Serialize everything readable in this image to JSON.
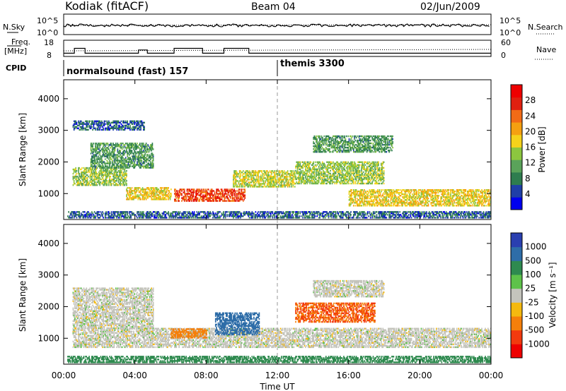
{
  "header": {
    "station": "Kodiak (fitACF)",
    "beam": "Beam 04",
    "date": "02/Jun/2009"
  },
  "nsky_panel": {
    "left_label": "N.Sky",
    "left_ticks": [
      "10^5",
      "10^0"
    ],
    "right_ticks": [
      "10^5",
      "10^0"
    ],
    "right_label": "N.Search"
  },
  "freq_panel": {
    "left_label_1": "Freq.",
    "left_label_2": "[MHz]",
    "left_ticks": [
      "18",
      "8"
    ],
    "right_ticks": [
      "60",
      "0"
    ],
    "right_label": "Nave"
  },
  "cpid": {
    "label": "CPID",
    "modes": [
      "normalsound (fast) 157",
      "themis 3300"
    ]
  },
  "x_axis": {
    "ticks": [
      "00:00",
      "04:00",
      "08:00",
      "12:00",
      "16:00",
      "20:00",
      "00:00"
    ],
    "label": "Time UT"
  },
  "power_panel": {
    "ylabel": "Slant Range [km]",
    "yticks": [
      "4000",
      "3000",
      "2000",
      "1000"
    ],
    "colorbar_label": "Power [dB]",
    "colorbar_ticks": [
      "28",
      "24",
      "20",
      "16",
      "12",
      "8",
      "4"
    ],
    "colors": [
      "#0000ee",
      "#1f3fa8",
      "#2e7d4f",
      "#5aa35a",
      "#8cc63f",
      "#f5d21b",
      "#f5a011",
      "#f26b16",
      "#e02010",
      "#ee0000"
    ]
  },
  "velocity_panel": {
    "ylabel": "Slant Range [km]",
    "yticks": [
      "4000",
      "3000",
      "2000",
      "1000"
    ],
    "colorbar_label": "Velocity [m s⁻¹]",
    "colorbar_ticks": [
      "1000",
      "500",
      "100",
      "25",
      "-25",
      "-100",
      "-500",
      "-1000"
    ],
    "colors": [
      "#2a3fb0",
      "#2e6da8",
      "#2e8a4f",
      "#5ec24a",
      "#c4c4bc",
      "#f5b90f",
      "#f57f0a",
      "#f23a0e",
      "#ee0000"
    ]
  },
  "chart_data": {
    "type": "heatmap",
    "x_range_hours": [
      0,
      24
    ],
    "y_range_km": [
      180,
      4600
    ],
    "grid": false,
    "time_tick_hours": [
      0,
      4,
      8,
      12,
      16,
      20,
      24
    ],
    "range_tick_km": [
      4000,
      3000,
      2000,
      1000
    ],
    "power_colorbar_db": [
      28,
      24,
      20,
      16,
      12,
      8,
      4
    ],
    "velocity_colorbar_ms": [
      1000,
      500,
      100,
      25,
      -25,
      -100,
      -500,
      -1000
    ],
    "cpid_modes": [
      {
        "name": "normalsound (fast) 157",
        "start_hour": 0,
        "end_hour": 12
      },
      {
        "name": "themis 3300",
        "start_hour": 12,
        "end_hour": 24
      }
    ],
    "frequency_mhz": [
      {
        "t0": 0,
        "t1": 0.6,
        "value": 10
      },
      {
        "t0": 0.6,
        "t1": 1.2,
        "value": 13
      },
      {
        "t0": 1.2,
        "t1": 4.2,
        "value": 10
      },
      {
        "t0": 4.2,
        "t1": 4.7,
        "value": 12
      },
      {
        "t0": 4.7,
        "t1": 6.2,
        "value": 10
      },
      {
        "t0": 6.2,
        "t1": 7.8,
        "value": 13
      },
      {
        "t0": 7.8,
        "t1": 9.0,
        "value": 10
      },
      {
        "t0": 9.0,
        "t1": 10.4,
        "value": 13
      },
      {
        "t0": 10.4,
        "t1": 24,
        "value": 10
      }
    ],
    "power_regions": [
      {
        "t0": 0.2,
        "t1": 24,
        "r0": 220,
        "r1": 420,
        "db": 6
      },
      {
        "t0": 6.2,
        "t1": 10.2,
        "r0": 750,
        "r1": 1150,
        "db": 26
      },
      {
        "t0": 3.5,
        "t1": 6.0,
        "r0": 800,
        "r1": 1200,
        "db": 18
      },
      {
        "t0": 0.5,
        "t1": 3.5,
        "r0": 1250,
        "r1": 1800,
        "db": 14
      },
      {
        "t0": 1.5,
        "t1": 5.0,
        "r0": 1800,
        "r1": 2600,
        "db": 10
      },
      {
        "t0": 9.5,
        "t1": 13.0,
        "r0": 1200,
        "r1": 1700,
        "db": 16
      },
      {
        "t0": 13.0,
        "t1": 18.0,
        "r0": 1300,
        "r1": 2000,
        "db": 14
      },
      {
        "t0": 14.0,
        "t1": 18.5,
        "r0": 2300,
        "r1": 2800,
        "db": 10
      },
      {
        "t0": 16.0,
        "t1": 24.0,
        "r0": 600,
        "r1": 1100,
        "db": 18
      },
      {
        "t0": 0.5,
        "t1": 4.5,
        "r0": 3000,
        "r1": 3300,
        "db": 6
      }
    ],
    "velocity_regions": [
      {
        "t0": 0.2,
        "t1": 24,
        "r0": 220,
        "r1": 420,
        "v": 150
      },
      {
        "t0": 0.5,
        "t1": 24,
        "r0": 700,
        "r1": 1300,
        "v": 0
      },
      {
        "t0": 0.5,
        "t1": 5.0,
        "r0": 1300,
        "r1": 2600,
        "v": 0
      },
      {
        "t0": 8.5,
        "t1": 11.0,
        "r0": 1100,
        "r1": 1800,
        "v": 400
      },
      {
        "t0": 13.0,
        "t1": 17.5,
        "r0": 1500,
        "r1": 2100,
        "v": -300
      },
      {
        "t0": 14.0,
        "t1": 18.0,
        "r0": 2300,
        "r1": 2800,
        "v": 0
      },
      {
        "t0": 6.0,
        "t1": 8.0,
        "r0": 1000,
        "r1": 1300,
        "v": -150
      }
    ]
  }
}
